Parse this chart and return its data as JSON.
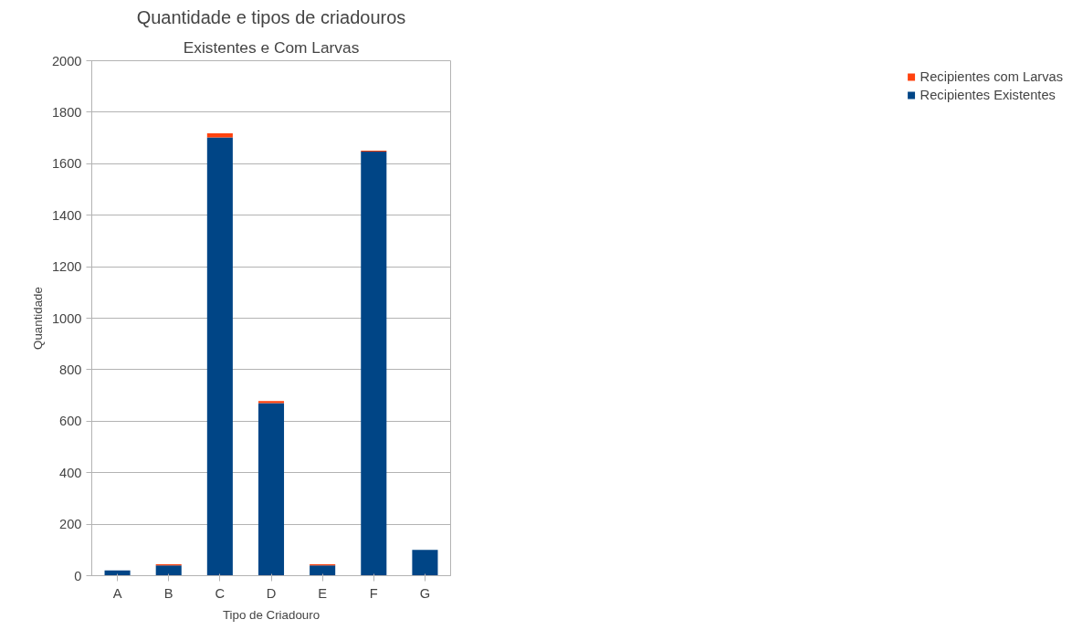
{
  "chart_data": {
    "type": "bar",
    "title": "Quantidade e tipos de criadouros",
    "subtitle": "Existentes e Com Larvas",
    "xlabel": "Tipo de Criadouro",
    "ylabel": "Quantidade",
    "categories": [
      "A",
      "B",
      "C",
      "D",
      "E",
      "F",
      "G"
    ],
    "stacked": true,
    "series": [
      {
        "name": "Recipientes Existentes",
        "color": "#004586",
        "values": [
          20,
          40,
          1702,
          670,
          40,
          1647,
          100
        ]
      },
      {
        "name": "Recipientes com Larvas",
        "color": "#ff420e",
        "values": [
          0,
          4,
          16,
          8,
          4,
          4,
          0
        ]
      }
    ],
    "ylim": [
      0,
      2000
    ],
    "yticks": [
      0,
      200,
      400,
      600,
      800,
      1000,
      1200,
      1400,
      1600,
      1800,
      2000
    ],
    "grid": "y",
    "legend": "right"
  }
}
